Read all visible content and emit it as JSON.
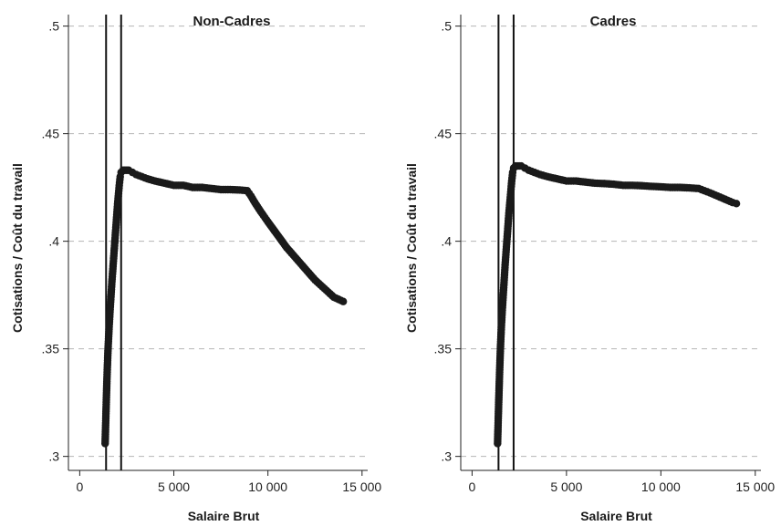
{
  "chart_data": [
    {
      "type": "scatter",
      "title": "Non-Cadres",
      "xlabel": "Salaire Brut",
      "ylabel": "Cotisations / Coût du travail",
      "xlim": [
        -600,
        15300
      ],
      "ylim": [
        0.2935,
        0.5045
      ],
      "xticks": [
        0,
        5000,
        10000,
        15000
      ],
      "xtick_labels": [
        "0",
        "5 000",
        "10 000",
        "15 000"
      ],
      "yticks": [
        0.3,
        0.35,
        0.4,
        0.45,
        0.5
      ],
      "ytick_labels": [
        ".3",
        ".35",
        ".4",
        ".45",
        ".5"
      ],
      "grid": "horizontal dashed",
      "vlines": [
        1400,
        2200
      ],
      "series": [
        {
          "x": [
            1350,
            1400,
            1450,
            1500,
            1550,
            1600,
            1650,
            1700,
            1750,
            1800,
            1850,
            1900,
            1950,
            2000,
            2050,
            2100,
            2150,
            2200,
            2300,
            2400,
            2500,
            2600,
            2800,
            3000,
            3300,
            3600,
            4000,
            4500,
            5000,
            5500,
            6000,
            6500,
            7000,
            7500,
            8000,
            8500,
            8900,
            9100,
            9300,
            9600,
            10000,
            10500,
            11000,
            11500,
            12000,
            12500,
            13000,
            13500,
            14000
          ],
          "y": [
            0.306,
            0.322,
            0.337,
            0.349,
            0.358,
            0.366,
            0.373,
            0.38,
            0.386,
            0.392,
            0.398,
            0.404,
            0.41,
            0.416,
            0.421,
            0.426,
            0.43,
            0.432,
            0.433,
            0.433,
            0.433,
            0.433,
            0.432,
            0.431,
            0.43,
            0.429,
            0.428,
            0.427,
            0.426,
            0.426,
            0.425,
            0.425,
            0.4245,
            0.424,
            0.424,
            0.4238,
            0.4235,
            0.421,
            0.418,
            0.414,
            0.409,
            0.403,
            0.397,
            0.392,
            0.387,
            0.382,
            0.378,
            0.374,
            0.372
          ]
        }
      ]
    },
    {
      "type": "scatter",
      "title": "Cadres",
      "xlabel": "Salaire Brut",
      "ylabel": "Cotisations / Coût du travail",
      "xlim": [
        -600,
        15300
      ],
      "ylim": [
        0.2935,
        0.5045
      ],
      "xticks": [
        0,
        5000,
        10000,
        15000
      ],
      "xtick_labels": [
        "0",
        "5 000",
        "10 000",
        "15 000"
      ],
      "yticks": [
        0.3,
        0.35,
        0.4,
        0.45,
        0.5
      ],
      "ytick_labels": [
        ".3",
        ".35",
        ".4",
        ".45",
        ".5"
      ],
      "grid": "horizontal dashed",
      "vlines": [
        1400,
        2200
      ],
      "series": [
        {
          "x": [
            1350,
            1400,
            1450,
            1500,
            1550,
            1600,
            1650,
            1700,
            1750,
            1800,
            1850,
            1900,
            1950,
            2000,
            2050,
            2100,
            2150,
            2200,
            2300,
            2400,
            2500,
            2600,
            2800,
            3000,
            3300,
            3600,
            4000,
            4500,
            5000,
            5500,
            6000,
            6500,
            7000,
            7500,
            8000,
            8500,
            9000,
            9500,
            10000,
            10500,
            11000,
            11500,
            12000,
            12300,
            12600,
            13000,
            13400,
            13800,
            14000
          ],
          "y": [
            0.306,
            0.322,
            0.337,
            0.35,
            0.36,
            0.368,
            0.375,
            0.382,
            0.389,
            0.395,
            0.401,
            0.407,
            0.413,
            0.418,
            0.423,
            0.428,
            0.432,
            0.434,
            0.435,
            0.435,
            0.435,
            0.435,
            0.434,
            0.433,
            0.432,
            0.431,
            0.43,
            0.429,
            0.428,
            0.428,
            0.4275,
            0.427,
            0.4268,
            0.4265,
            0.426,
            0.426,
            0.4258,
            0.4255,
            0.4253,
            0.425,
            0.425,
            0.4248,
            0.4245,
            0.4235,
            0.4225,
            0.421,
            0.4195,
            0.418,
            0.4175
          ]
        }
      ]
    }
  ]
}
